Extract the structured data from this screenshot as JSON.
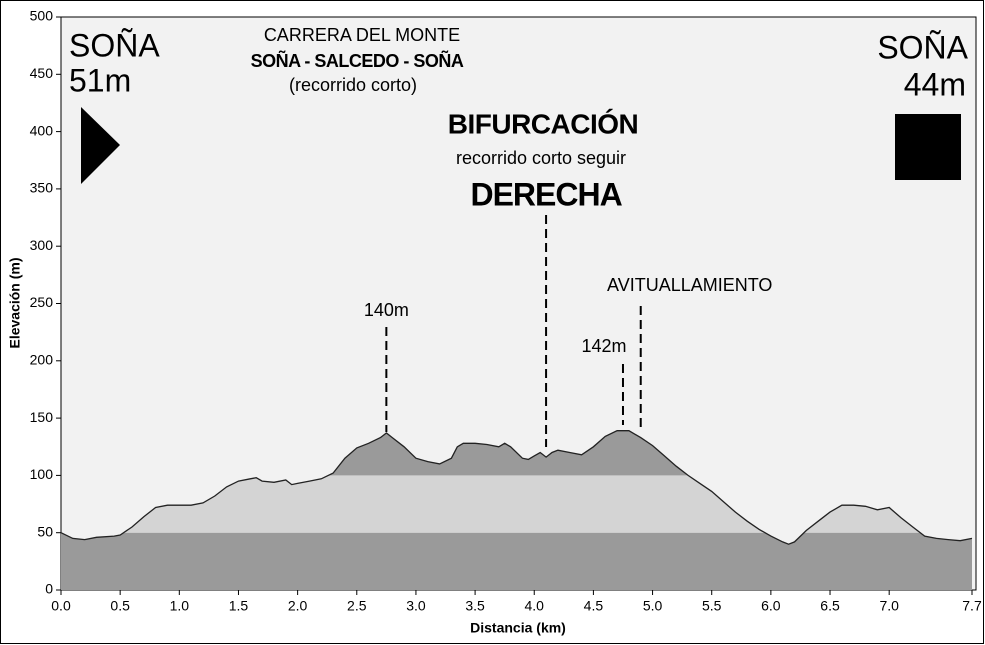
{
  "chart_data": {
    "type": "area",
    "title": "CARRERA DEL MONTE",
    "subtitle": "SOÑA - SALCEDO - SOÑA",
    "subtitle2": "(recorrido corto)",
    "x_label": "Distancia   (km)",
    "y_label": "Elevación (m)",
    "start": {
      "name": "SOÑA",
      "elevation": "51m"
    },
    "finish": {
      "name": "SOÑA",
      "elevation": "44m"
    },
    "junction": {
      "title": "BIFURCACIÓN",
      "text": "recorrido corto seguir"
    },
    "markers": [
      {
        "label": "140m",
        "x": 2.75
      },
      {
        "label": "DERECHA",
        "x": 4.1
      },
      {
        "label": "142m",
        "x": 4.75
      },
      {
        "label": "AVITUALLAMIENTO",
        "x": 4.9
      }
    ],
    "x": [
      0.0,
      0.1,
      0.2,
      0.3,
      0.45,
      0.5,
      0.6,
      0.7,
      0.8,
      0.9,
      1.0,
      1.1,
      1.2,
      1.3,
      1.4,
      1.5,
      1.6,
      1.65,
      1.7,
      1.8,
      1.9,
      1.95,
      2.0,
      2.1,
      2.2,
      2.3,
      2.4,
      2.5,
      2.6,
      2.7,
      2.75,
      2.8,
      2.9,
      3.0,
      3.1,
      3.2,
      3.3,
      3.35,
      3.4,
      3.5,
      3.6,
      3.7,
      3.75,
      3.8,
      3.9,
      3.95,
      4.0,
      4.05,
      4.1,
      4.15,
      4.2,
      4.3,
      4.4,
      4.5,
      4.6,
      4.7,
      4.8,
      4.9,
      5.0,
      5.1,
      5.2,
      5.3,
      5.4,
      5.5,
      5.6,
      5.7,
      5.8,
      5.9,
      6.0,
      6.1,
      6.15,
      6.2,
      6.3,
      6.4,
      6.5,
      6.6,
      6.7,
      6.8,
      6.9,
      7.0,
      7.1,
      7.2,
      7.3,
      7.4,
      7.5,
      7.6,
      7.7
    ],
    "values": [
      50,
      45,
      44,
      46,
      47,
      48,
      55,
      64,
      72,
      74,
      74,
      74,
      76,
      82,
      90,
      95,
      97,
      98,
      95,
      94,
      96,
      92,
      93,
      95,
      97,
      102,
      115,
      124,
      128,
      133,
      137,
      133,
      125,
      115,
      112,
      110,
      115,
      125,
      128,
      128,
      127,
      125,
      128,
      125,
      115,
      114,
      117,
      120,
      116,
      120,
      122,
      120,
      118,
      125,
      134,
      139,
      139,
      133,
      126,
      117,
      108,
      100,
      93,
      86,
      77,
      68,
      60,
      53,
      47,
      42,
      40,
      42,
      52,
      60,
      68,
      74,
      74,
      73,
      70,
      72,
      63,
      55,
      47,
      45,
      44,
      43,
      45
    ],
    "shade_levels": [
      50,
      100
    ],
    "colors": {
      "low": "#9a9a9a",
      "mid": "#d4d4d4",
      "high": "#9a9a9a",
      "background": "#f2f2f2"
    },
    "xlim": [
      0,
      7.7
    ],
    "ylim": [
      0,
      500
    ],
    "xticks": [
      {
        "value": 0,
        "label": "0.0"
      },
      0.5,
      {
        "value": 1,
        "label": "1.0"
      },
      1.5,
      {
        "value": 2,
        "label": "2.0"
      },
      2.5,
      {
        "value": 3,
        "label": "3.0"
      },
      3.5,
      {
        "value": 4,
        "label": "4.0"
      },
      4.5,
      {
        "value": 5,
        "label": "5.0"
      },
      5.5,
      {
        "value": 6,
        "label": "6.0"
      },
      6.5,
      {
        "value": 7,
        "label": "7.0"
      },
      7.7
    ],
    "yticks": [
      0,
      50,
      100,
      150,
      200,
      250,
      300,
      350,
      400,
      450,
      500
    ]
  }
}
